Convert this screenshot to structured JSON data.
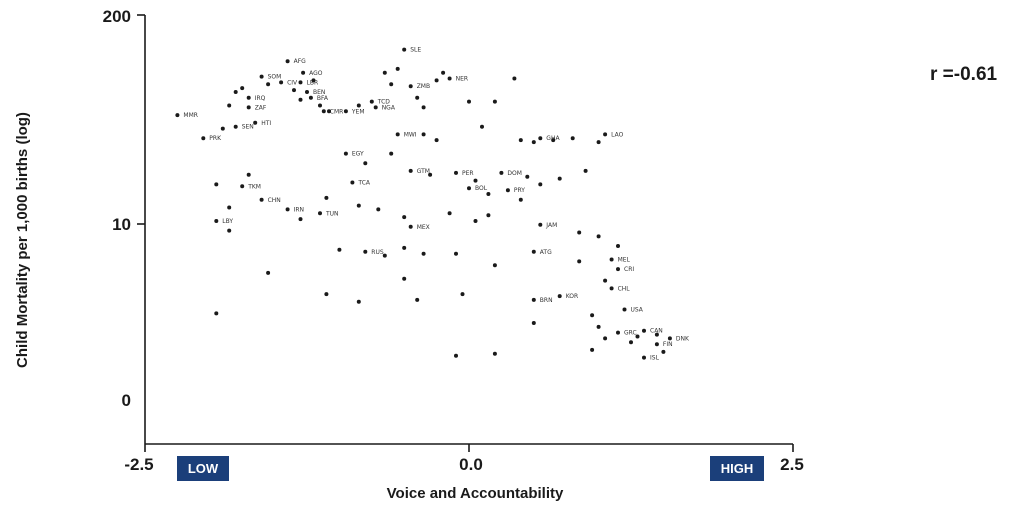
{
  "chart_data": {
    "type": "scatter",
    "title": "",
    "xlabel": "Voice and Accountability",
    "ylabel": "Child Mortality per 1,000 births (log)",
    "annotation": "r =-0.61",
    "x_ticks": [
      "-2.5",
      "0.0",
      "2.5"
    ],
    "y_ticks": [
      "200",
      "10",
      "0"
    ],
    "xlim": [
      -2.5,
      2.5
    ],
    "badges": {
      "low": "LOW",
      "high": "HIGH"
    },
    "colors": {
      "points": "#1a1a1a",
      "badge": "#1b3f7a",
      "axis": "#1a1a1a"
    },
    "points": [
      {
        "x": -2.25,
        "y": 148,
        "label": "MMR"
      },
      {
        "x": -2.05,
        "y": 136,
        "label": "PRK"
      },
      {
        "x": -1.9,
        "y": 141
      },
      {
        "x": -1.8,
        "y": 142,
        "label": "SEN"
      },
      {
        "x": -1.65,
        "y": 144,
        "label": "HTI"
      },
      {
        "x": -1.75,
        "y": 162
      },
      {
        "x": -1.8,
        "y": 160
      },
      {
        "x": -1.85,
        "y": 153
      },
      {
        "x": -1.7,
        "y": 157,
        "label": "IRQ"
      },
      {
        "x": -1.7,
        "y": 152,
        "label": "ZAF"
      },
      {
        "x": -1.6,
        "y": 168,
        "label": "SOM"
      },
      {
        "x": -1.55,
        "y": 164
      },
      {
        "x": -1.45,
        "y": 165,
        "label": "CIV"
      },
      {
        "x": -1.4,
        "y": 176,
        "label": "AFG"
      },
      {
        "x": -1.35,
        "y": 161
      },
      {
        "x": -1.3,
        "y": 156
      },
      {
        "x": -1.3,
        "y": 165,
        "label": "LBR"
      },
      {
        "x": -1.25,
        "y": 160,
        "label": "BEN"
      },
      {
        "x": -1.28,
        "y": 170,
        "label": "AGO"
      },
      {
        "x": -1.2,
        "y": 166
      },
      {
        "x": -1.22,
        "y": 157,
        "label": "BFA"
      },
      {
        "x": -1.15,
        "y": 153
      },
      {
        "x": -1.12,
        "y": 150,
        "label": "CMR"
      },
      {
        "x": -1.08,
        "y": 150
      },
      {
        "x": -0.95,
        "y": 150,
        "label": "YEM"
      },
      {
        "x": -0.85,
        "y": 153
      },
      {
        "x": -0.75,
        "y": 155,
        "label": "TCD"
      },
      {
        "x": -0.72,
        "y": 152,
        "label": "NGA"
      },
      {
        "x": -0.65,
        "y": 170
      },
      {
        "x": -0.6,
        "y": 164
      },
      {
        "x": -0.55,
        "y": 172
      },
      {
        "x": -0.5,
        "y": 182,
        "label": "SLE"
      },
      {
        "x": -0.45,
        "y": 163,
        "label": "ZMB"
      },
      {
        "x": -0.4,
        "y": 157
      },
      {
        "x": -0.35,
        "y": 152
      },
      {
        "x": -0.25,
        "y": 166
      },
      {
        "x": -0.2,
        "y": 170
      },
      {
        "x": -0.15,
        "y": 167,
        "label": "NER"
      },
      {
        "x": 0.0,
        "y": 155
      },
      {
        "x": 0.1,
        "y": 142
      },
      {
        "x": 0.2,
        "y": 155
      },
      {
        "x": 0.35,
        "y": 167
      },
      {
        "x": -0.55,
        "y": 138,
        "label": "MWI"
      },
      {
        "x": -0.35,
        "y": 138
      },
      {
        "x": -0.25,
        "y": 135
      },
      {
        "x": 0.4,
        "y": 135
      },
      {
        "x": 0.5,
        "y": 134
      },
      {
        "x": 0.55,
        "y": 136,
        "label": "GHA"
      },
      {
        "x": 0.65,
        "y": 135
      },
      {
        "x": 0.8,
        "y": 136
      },
      {
        "x": 1.05,
        "y": 138,
        "label": "LAO"
      },
      {
        "x": 1.0,
        "y": 134
      },
      {
        "x": -0.95,
        "y": 128,
        "label": "EGY"
      },
      {
        "x": -0.8,
        "y": 123
      },
      {
        "x": -0.6,
        "y": 128
      },
      {
        "x": -0.45,
        "y": 119,
        "label": "GTM"
      },
      {
        "x": -0.3,
        "y": 117
      },
      {
        "x": -0.1,
        "y": 118,
        "label": "PER"
      },
      {
        "x": 0.05,
        "y": 114
      },
      {
        "x": 0.25,
        "y": 118,
        "label": "DOM"
      },
      {
        "x": 0.45,
        "y": 116
      },
      {
        "x": 0.55,
        "y": 112
      },
      {
        "x": 0.7,
        "y": 115
      },
      {
        "x": 0.9,
        "y": 119
      },
      {
        "x": 0.0,
        "y": 110,
        "label": "BOL"
      },
      {
        "x": 0.15,
        "y": 107
      },
      {
        "x": 0.3,
        "y": 109,
        "label": "PRY"
      },
      {
        "x": 0.4,
        "y": 104
      },
      {
        "x": -0.9,
        "y": 113,
        "label": "TCA"
      },
      {
        "x": -1.75,
        "y": 111,
        "label": "TKM"
      },
      {
        "x": -1.6,
        "y": 104,
        "label": "CHN"
      },
      {
        "x": -1.7,
        "y": 117
      },
      {
        "x": -1.95,
        "y": 112
      },
      {
        "x": -1.85,
        "y": 100
      },
      {
        "x": -1.4,
        "y": 99,
        "label": "IRN"
      },
      {
        "x": -1.3,
        "y": 94
      },
      {
        "x": -1.15,
        "y": 97,
        "label": "TUN"
      },
      {
        "x": -1.1,
        "y": 105
      },
      {
        "x": -0.85,
        "y": 101
      },
      {
        "x": -0.7,
        "y": 99
      },
      {
        "x": -1.95,
        "y": 93,
        "label": "LBY"
      },
      {
        "x": -1.85,
        "y": 88
      },
      {
        "x": -0.5,
        "y": 95
      },
      {
        "x": -0.45,
        "y": 90,
        "label": "MEX"
      },
      {
        "x": -0.15,
        "y": 97
      },
      {
        "x": 0.05,
        "y": 93
      },
      {
        "x": 0.15,
        "y": 96
      },
      {
        "x": 0.55,
        "y": 91,
        "label": "JAM"
      },
      {
        "x": 0.85,
        "y": 87
      },
      {
        "x": 1.0,
        "y": 85
      },
      {
        "x": 1.15,
        "y": 80
      },
      {
        "x": -1.0,
        "y": 78
      },
      {
        "x": -0.8,
        "y": 77,
        "label": "RUS"
      },
      {
        "x": -0.65,
        "y": 75
      },
      {
        "x": -0.5,
        "y": 79
      },
      {
        "x": -0.35,
        "y": 76
      },
      {
        "x": -0.1,
        "y": 76
      },
      {
        "x": 0.5,
        "y": 77,
        "label": "ATG"
      },
      {
        "x": 0.85,
        "y": 72
      },
      {
        "x": 1.1,
        "y": 73,
        "label": "MEL"
      },
      {
        "x": 0.2,
        "y": 70
      },
      {
        "x": -1.55,
        "y": 66
      },
      {
        "x": -0.5,
        "y": 63
      },
      {
        "x": 1.15,
        "y": 68,
        "label": "CRI"
      },
      {
        "x": 1.05,
        "y": 62
      },
      {
        "x": 1.1,
        "y": 58,
        "label": "CHL"
      },
      {
        "x": 0.7,
        "y": 54,
        "label": "KOR"
      },
      {
        "x": 0.5,
        "y": 52,
        "label": "BRN"
      },
      {
        "x": -1.1,
        "y": 55
      },
      {
        "x": -0.85,
        "y": 51
      },
      {
        "x": -0.4,
        "y": 52
      },
      {
        "x": -0.05,
        "y": 55
      },
      {
        "x": -1.95,
        "y": 45
      },
      {
        "x": 0.95,
        "y": 44
      },
      {
        "x": 1.2,
        "y": 47,
        "label": "USA"
      },
      {
        "x": 0.5,
        "y": 40
      },
      {
        "x": 1.0,
        "y": 38
      },
      {
        "x": 1.15,
        "y": 35,
        "label": "GRC"
      },
      {
        "x": 1.3,
        "y": 33
      },
      {
        "x": 1.35,
        "y": 36,
        "label": "CAN"
      },
      {
        "x": 1.45,
        "y": 34
      },
      {
        "x": 1.55,
        "y": 32,
        "label": "DNK"
      },
      {
        "x": 1.05,
        "y": 32
      },
      {
        "x": 1.25,
        "y": 30
      },
      {
        "x": 1.45,
        "y": 29,
        "label": "FIN"
      },
      {
        "x": 0.95,
        "y": 26
      },
      {
        "x": 1.5,
        "y": 25
      },
      {
        "x": 1.35,
        "y": 22,
        "label": "ISL"
      },
      {
        "x": -0.1,
        "y": 23
      },
      {
        "x": 0.2,
        "y": 24
      }
    ]
  }
}
